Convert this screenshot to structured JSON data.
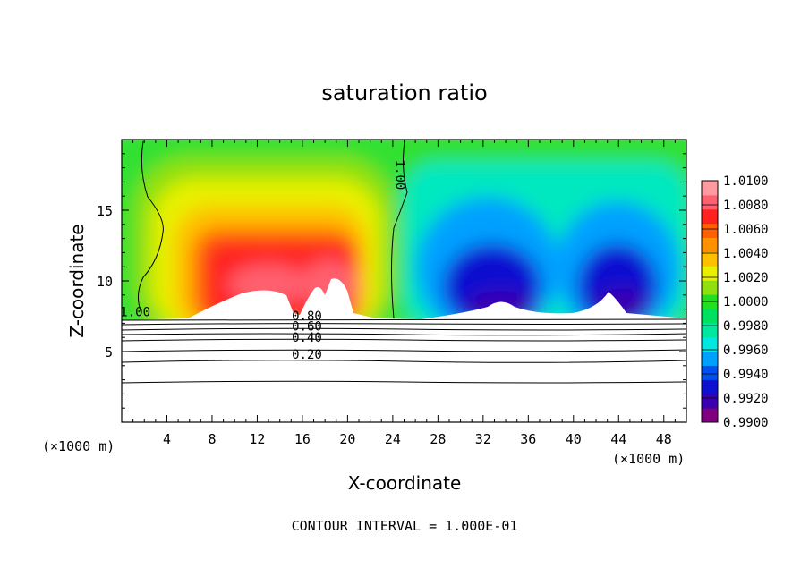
{
  "chart_data": {
    "type": "heatmap",
    "title": "saturation ratio",
    "xlabel": "X-coordinate",
    "ylabel": "Z-coordinate",
    "x_unit_left": "(×1000 m)",
    "x_unit_right": "(×1000 m)",
    "footer": "CONTOUR INTERVAL = 1.000E-01",
    "xlim": [
      0,
      50
    ],
    "ylim": [
      0,
      20
    ],
    "x_ticks": [
      "4",
      "8",
      "12",
      "16",
      "20",
      "24",
      "28",
      "32",
      "36",
      "40",
      "44",
      "48"
    ],
    "x_tick_values": [
      4,
      8,
      12,
      16,
      20,
      24,
      28,
      32,
      36,
      40,
      44,
      48
    ],
    "y_ticks": [
      "5",
      "10",
      "15"
    ],
    "y_tick_values": [
      5,
      10,
      15
    ],
    "colorbar": {
      "min": 0.99,
      "max": 1.01,
      "labels": [
        "1.0100",
        "1.0080",
        "1.0060",
        "1.0040",
        "1.0020",
        "1.0000",
        "0.9980",
        "0.9960",
        "0.9940",
        "0.9920",
        "0.9900"
      ],
      "colors": [
        "#7f007f",
        "#3a00b0",
        "#1010d0",
        "#0050f0",
        "#00a0ff",
        "#00e8e0",
        "#00e8a0",
        "#00e060",
        "#20e020",
        "#90e010",
        "#e8f000",
        "#ffc000",
        "#ff9000",
        "#ff6000",
        "#ff2020",
        "#ff6070",
        "#ff9aa0"
      ]
    },
    "contour_labels": [
      {
        "text": "1.00",
        "x": 1.2,
        "y": 7.5
      },
      {
        "text": "1.00",
        "x": 24.3,
        "y": 17.5
      },
      {
        "text": "0.80",
        "x": 16.4,
        "y": 7.2
      },
      {
        "text": "0.60",
        "x": 16.4,
        "y": 6.5
      },
      {
        "text": "0.40",
        "x": 16.4,
        "y": 5.7
      },
      {
        "text": "0.20",
        "x": 16.4,
        "y": 4.5
      }
    ],
    "contour_levels": [
      0.2,
      0.4,
      0.6,
      0.8,
      1.0
    ]
  }
}
